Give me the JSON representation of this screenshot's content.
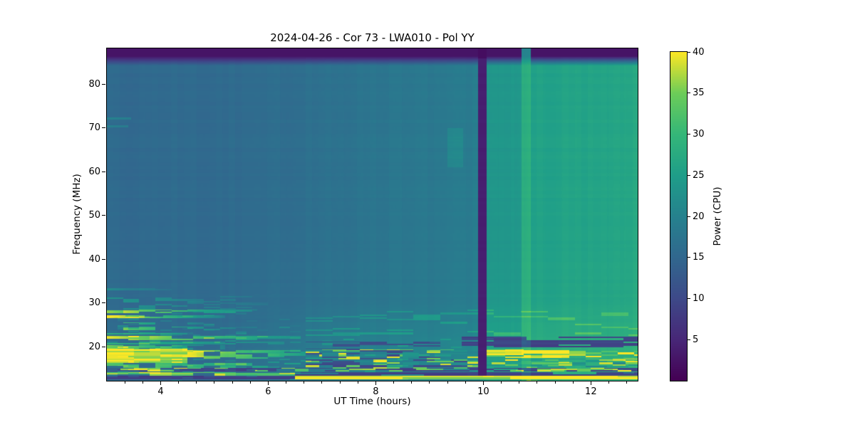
{
  "chart_data": {
    "type": "heatmap",
    "title": "2024-04-26 - Cor 73 - LWA010 - Pol YY",
    "xlabel": "UT Time (hours)",
    "ylabel": "Frequency (MHz)",
    "colorbar_label": "Power (CPU)",
    "colormap": "viridis",
    "x_range": [
      3.0,
      12.87
    ],
    "y_range": [
      12.2,
      88.2
    ],
    "value_range": [
      0,
      40
    ],
    "x_ticks": [
      4,
      6,
      8,
      10,
      12
    ],
    "x_minor_step": 0.3333333,
    "y_ticks": [
      20,
      30,
      40,
      50,
      60,
      70,
      80
    ],
    "colorbar_ticks": [
      5,
      10,
      15,
      20,
      25,
      30,
      35,
      40
    ],
    "legend_position": "right-colorbar",
    "grid": false,
    "background_levels": [
      {
        "t": 3.0,
        "v": 15.2
      },
      {
        "t": 6.0,
        "v": 15.8
      },
      {
        "t": 7.5,
        "v": 17.0
      },
      {
        "t": 9.0,
        "v": 18.2
      },
      {
        "t": 9.9,
        "v": 18.9
      },
      {
        "t": 10.07,
        "v": 23.6
      },
      {
        "t": 10.7,
        "v": 23.9
      },
      {
        "t": 10.9,
        "v": 25.6
      },
      {
        "t": 12.87,
        "v": 26.5
      }
    ],
    "low_freq_green_boost": {
      "f_max": 32,
      "span": 12,
      "t_start": 5,
      "t_ramp": 2,
      "amount": 2.2
    },
    "top_band": {
      "f_start": 84.2,
      "f_full": 86.4,
      "value": 2.5,
      "gap_value": 1.6
    },
    "vertical_stripes": [
      {
        "kind": "data-gap",
        "t0": 9.905,
        "t1": 10.065,
        "value": 3.8
      },
      {
        "kind": "brightening",
        "t0": 10.715,
        "t1": 10.885,
        "value": 4.0
      }
    ],
    "rfi_features": [
      {
        "f0": 27.6,
        "f1": 28.4,
        "t0": 3.0,
        "t1": 5.8,
        "mode": "add",
        "value": 23,
        "density": 0.7,
        "seg": 0.3,
        "fade": 0.8
      },
      {
        "f0": 26.5,
        "f1": 27.1,
        "t0": 3.0,
        "t1": 5.2,
        "mode": "add",
        "value": 25,
        "density": 0.8,
        "seg": 0.35,
        "fade": 0.85
      },
      {
        "f0": 25.0,
        "f1": 25.6,
        "t0": 3.0,
        "t1": 4.8,
        "mode": "add",
        "value": 17,
        "density": 0.55,
        "seg": 0.3,
        "fade": 0.8
      },
      {
        "f0": 23.7,
        "f1": 24.5,
        "t0": 3.0,
        "t1": 5.4,
        "mode": "add",
        "value": 19,
        "density": 0.6,
        "seg": 0.3,
        "fade": 0.8
      },
      {
        "f0": 22.7,
        "f1": 23.2,
        "t0": 3.0,
        "t1": 4.6,
        "mode": "add",
        "value": 15,
        "density": 0.5,
        "seg": 0.3,
        "fade": 0.7
      },
      {
        "f0": 21.5,
        "f1": 22.4,
        "t0": 3.0,
        "t1": 6.6,
        "mode": "add",
        "value": 24,
        "density": 0.75,
        "seg": 0.4,
        "fade": 0.8
      },
      {
        "f0": 20.5,
        "f1": 21.2,
        "t0": 3.0,
        "t1": 6.3,
        "mode": "add",
        "value": 13,
        "density": 0.65,
        "seg": 0.3,
        "fade": 0.7
      },
      {
        "f0": 19.4,
        "f1": 20.3,
        "t0": 3.0,
        "t1": 5.2,
        "mode": "add",
        "value": 20,
        "density": 0.75,
        "seg": 0.3,
        "fade": 0.75
      },
      {
        "f0": 16.2,
        "f1": 19.5,
        "t0": 3.0,
        "t1": 4.5,
        "mode": "set",
        "value": 39,
        "density": 1.0,
        "seg": 0.5,
        "fade": 0
      },
      {
        "f0": 17.2,
        "f1": 19.2,
        "t0": 4.5,
        "t1": 6.7,
        "mode": "add",
        "value": 23,
        "density": 0.65,
        "seg": 0.3,
        "fade": 0.7
      },
      {
        "f0": 15.2,
        "f1": 16.2,
        "t0": 3.0,
        "t1": 6.7,
        "mode": "add",
        "value": 18,
        "density": 0.6,
        "seg": 0.3,
        "fade": 0.6
      },
      {
        "f0": 14.3,
        "f1": 15.2,
        "t0": 3.0,
        "t1": 12.87,
        "mode": "set",
        "value": 9.5,
        "density": 0.7,
        "seg": 0.45,
        "fade": 0
      },
      {
        "f0": 14.3,
        "f1": 15.2,
        "t0": 3.0,
        "t1": 12.87,
        "mode": "set",
        "value": 36,
        "density": 0.3,
        "seg": 0.25,
        "fade": 0
      },
      {
        "f0": 13.3,
        "f1": 14.2,
        "t0": 3.0,
        "t1": 6.5,
        "mode": "set",
        "value": 34,
        "density": 0.85,
        "seg": 0.4,
        "fade": 0
      },
      {
        "f0": 13.3,
        "f1": 14.2,
        "t0": 6.5,
        "t1": 12.87,
        "mode": "set",
        "value": 8.5,
        "density": 0.95,
        "seg": 0.8,
        "fade": 0
      },
      {
        "f0": 12.6,
        "f1": 13.3,
        "t0": 3.0,
        "t1": 6.5,
        "mode": "set",
        "value": 8.5,
        "density": 1.0,
        "seg": 2.0,
        "fade": 0
      },
      {
        "f0": 12.6,
        "f1": 13.3,
        "t0": 6.5,
        "t1": 12.87,
        "mode": "set",
        "value": 39.5,
        "density": 1.0,
        "seg": 2.0,
        "fade": 0
      },
      {
        "f0": 15.0,
        "f1": 19.5,
        "t0": 6.7,
        "t1": 9.9,
        "mode": "set",
        "value": 10.5,
        "density": 0.5,
        "seg": 0.5,
        "fade": 0
      },
      {
        "f0": 15.0,
        "f1": 19.3,
        "t0": 6.7,
        "t1": 9.9,
        "mode": "set",
        "value": 36,
        "density": 0.25,
        "seg": 0.25,
        "fade": 0
      },
      {
        "f0": 15.0,
        "f1": 19.3,
        "t0": 6.7,
        "t1": 9.9,
        "mode": "set",
        "value": 22,
        "density": 0.3,
        "seg": 0.3,
        "fade": 0
      },
      {
        "f0": 19.8,
        "f1": 22.3,
        "t0": 9.6,
        "t1": 12.87,
        "mode": "set",
        "value": 9,
        "density": 0.8,
        "seg": 0.6,
        "fade": 0
      },
      {
        "f0": 19.6,
        "f1": 21.2,
        "t0": 6.7,
        "t1": 9.6,
        "mode": "set",
        "value": 11,
        "density": 0.4,
        "seg": 0.5,
        "fade": 0
      },
      {
        "f0": 17.4,
        "f1": 19.4,
        "t0": 10.05,
        "t1": 11.6,
        "mode": "set",
        "value": 38.5,
        "density": 0.8,
        "seg": 0.35,
        "fade": 0
      },
      {
        "f0": 17.6,
        "f1": 19.0,
        "t0": 11.6,
        "t1": 12.87,
        "mode": "set",
        "value": 37,
        "density": 0.45,
        "seg": 0.3,
        "fade": 0
      },
      {
        "f0": 15.3,
        "f1": 17.3,
        "t0": 9.9,
        "t1": 12.87,
        "mode": "set",
        "value": 23,
        "density": 0.45,
        "seg": 0.4,
        "fade": 0
      },
      {
        "f0": 15.3,
        "f1": 17.3,
        "t0": 9.9,
        "t1": 12.87,
        "mode": "set",
        "value": 37,
        "density": 0.25,
        "seg": 0.25,
        "fade": 0
      },
      {
        "f0": 22.5,
        "f1": 28.5,
        "t0": 6.7,
        "t1": 12.87,
        "mode": "add",
        "value": 5,
        "density": 0.18,
        "seg": 0.5,
        "fade": 0
      },
      {
        "f0": 28.4,
        "f1": 31.5,
        "t0": 3.0,
        "t1": 6.0,
        "mode": "add",
        "value": 8,
        "density": 0.3,
        "seg": 0.3,
        "fade": 0.8
      },
      {
        "f0": 32.8,
        "f1": 33.3,
        "t0": 3.0,
        "t1": 4.2,
        "mode": "add",
        "value": 6,
        "density": 0.7,
        "seg": 0.3,
        "fade": 0.7
      },
      {
        "f0": 71.9,
        "f1": 72.4,
        "t0": 3.0,
        "t1": 3.45,
        "mode": "add",
        "value": 5,
        "density": 1.0,
        "seg": 1.0,
        "fade": 0
      },
      {
        "f0": 70.2,
        "f1": 70.7,
        "t0": 3.0,
        "t1": 3.4,
        "mode": "add",
        "value": 4,
        "density": 1.0,
        "seg": 1.0,
        "fade": 0
      },
      {
        "f0": 61.0,
        "f1": 70.0,
        "t0": 9.33,
        "t1": 9.62,
        "mode": "add",
        "value": 2.5,
        "density": 1.0,
        "seg": 1.0,
        "fade": 0
      }
    ],
    "speckle": {
      "f_max": 28,
      "prob_left": 0.22,
      "prob_right": 0.06,
      "amp": 7
    },
    "palette": {
      "body_left": "#2a788e",
      "body_right": "#28a883",
      "dark_band": "#46147a",
      "rfi_yellow": "#fde725",
      "navy_band": "#423d82"
    }
  }
}
